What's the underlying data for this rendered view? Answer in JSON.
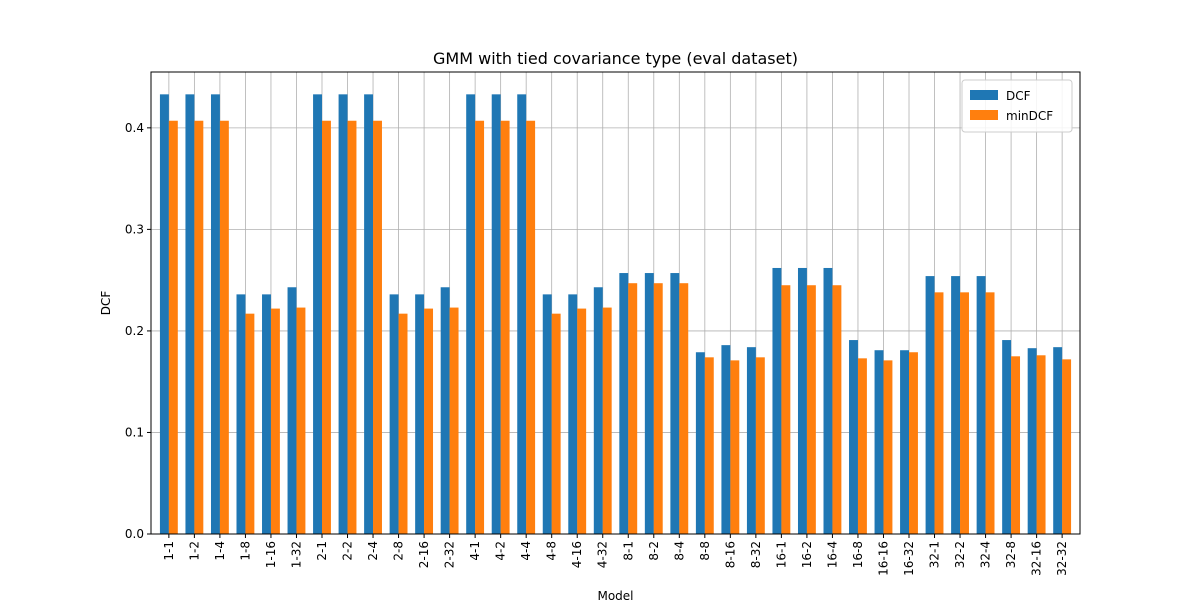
{
  "chart_data": {
    "type": "bar",
    "title": "GMM with tied covariance type (eval dataset)",
    "xlabel": "Model",
    "ylabel": "DCF",
    "ylim": [
      0,
      0.455
    ],
    "yticks": [
      0.0,
      0.1,
      0.2,
      0.3,
      0.4
    ],
    "ytick_labels": [
      "0.0",
      "0.1",
      "0.2",
      "0.3",
      "0.4"
    ],
    "grid": true,
    "legend_position": "top-right",
    "categories": [
      "1-1",
      "1-2",
      "1-4",
      "1-8",
      "1-16",
      "1-32",
      "2-1",
      "2-2",
      "2-4",
      "2-8",
      "2-16",
      "2-32",
      "4-1",
      "4-2",
      "4-4",
      "4-8",
      "4-16",
      "4-32",
      "8-1",
      "8-2",
      "8-4",
      "8-8",
      "8-16",
      "8-32",
      "16-1",
      "16-2",
      "16-4",
      "16-8",
      "16-16",
      "16-32",
      "32-1",
      "32-2",
      "32-4",
      "32-8",
      "32-16",
      "32-32"
    ],
    "series": [
      {
        "name": "DCF",
        "color": "#1f77b4",
        "values": [
          0.433,
          0.433,
          0.433,
          0.236,
          0.236,
          0.243,
          0.433,
          0.433,
          0.433,
          0.236,
          0.236,
          0.243,
          0.433,
          0.433,
          0.433,
          0.236,
          0.236,
          0.243,
          0.257,
          0.257,
          0.257,
          0.179,
          0.186,
          0.184,
          0.262,
          0.262,
          0.262,
          0.191,
          0.181,
          0.181,
          0.254,
          0.254,
          0.254,
          0.191,
          0.183,
          0.184
        ]
      },
      {
        "name": "minDCF",
        "color": "#ff7f0e",
        "values": [
          0.407,
          0.407,
          0.407,
          0.217,
          0.222,
          0.223,
          0.407,
          0.407,
          0.407,
          0.217,
          0.222,
          0.223,
          0.407,
          0.407,
          0.407,
          0.217,
          0.222,
          0.223,
          0.247,
          0.247,
          0.247,
          0.174,
          0.171,
          0.174,
          0.245,
          0.245,
          0.245,
          0.173,
          0.171,
          0.179,
          0.238,
          0.238,
          0.238,
          0.175,
          0.176,
          0.172
        ]
      }
    ]
  }
}
